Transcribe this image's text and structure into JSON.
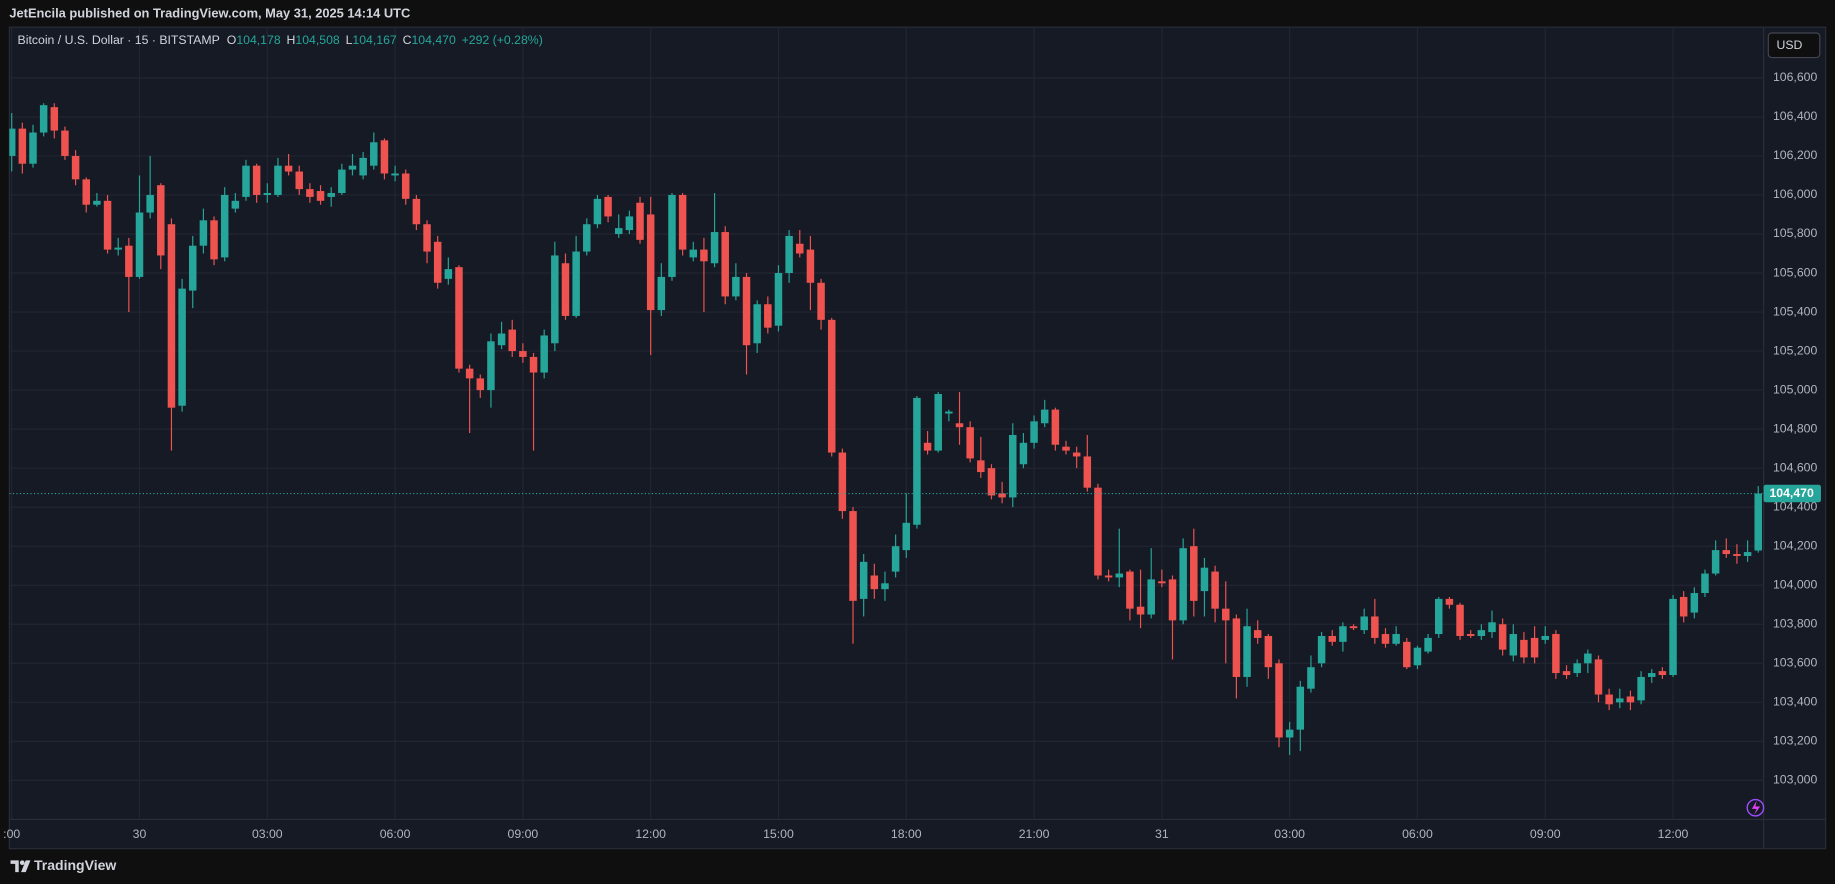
{
  "header": {
    "publisher": "JetEncila published on TradingView.com, May 31, 2025 14:14 UTC"
  },
  "footer": {
    "brand": "TradingView"
  },
  "chart_data": {
    "type": "candlestick",
    "symbol": "Bitcoin / U.S. Dollar · 15 · BITSTAMP",
    "ohlc_labels": [
      "O",
      "H",
      "L",
      "C"
    ],
    "ohlc_values": [
      {
        "value": 104178,
        "label": "104,178"
      },
      {
        "value": 104508,
        "label": "104,508"
      },
      {
        "value": 104167,
        "label": "104,167"
      },
      {
        "value": 104470,
        "label": "104,470"
      }
    ],
    "change": "+292 (+0.28%)",
    "currency": "USD",
    "up_color": "#26a69a",
    "down_color": "#ef5350",
    "last_price": {
      "value": 104470,
      "label": "104,470"
    },
    "grid": true,
    "ylim": [
      102800,
      106860
    ],
    "yticks": [
      {
        "value": 103000,
        "label": "103,000"
      },
      {
        "value": 103200,
        "label": "103,200"
      },
      {
        "value": 103400,
        "label": "103,400"
      },
      {
        "value": 103600,
        "label": "103,600"
      },
      {
        "value": 103800,
        "label": "103,800"
      },
      {
        "value": 104000,
        "label": "104,000"
      },
      {
        "value": 104200,
        "label": "104,200"
      },
      {
        "value": 104400,
        "label": "104,400"
      },
      {
        "value": 104600,
        "label": "104,600"
      },
      {
        "value": 104800,
        "label": "104,800"
      },
      {
        "value": 105000,
        "label": "105,000"
      },
      {
        "value": 105200,
        "label": "105,200"
      },
      {
        "value": 105400,
        "label": "105,400"
      },
      {
        "value": 105600,
        "label": "105,600"
      },
      {
        "value": 105800,
        "label": "105,800"
      },
      {
        "value": 106000,
        "label": "106,000"
      },
      {
        "value": 106200,
        "label": "106,200"
      },
      {
        "value": 106400,
        "label": "106,400"
      },
      {
        "value": 106600,
        "label": "106,600"
      }
    ],
    "categories": [
      ":00",
      null,
      null,
      null,
      null,
      null,
      null,
      null,
      null,
      null,
      null,
      null,
      "30",
      null,
      null,
      null,
      null,
      null,
      null,
      null,
      null,
      null,
      null,
      null,
      "03:00",
      null,
      null,
      null,
      null,
      null,
      null,
      null,
      null,
      null,
      null,
      null,
      "06:00",
      null,
      null,
      null,
      null,
      null,
      null,
      null,
      null,
      null,
      null,
      null,
      "09:00",
      null,
      null,
      null,
      null,
      null,
      null,
      null,
      null,
      null,
      null,
      null,
      "12:00",
      null,
      null,
      null,
      null,
      null,
      null,
      null,
      null,
      null,
      null,
      null,
      "15:00",
      null,
      null,
      null,
      null,
      null,
      null,
      null,
      null,
      null,
      null,
      null,
      "18:00",
      null,
      null,
      null,
      null,
      null,
      null,
      null,
      null,
      null,
      null,
      null,
      "21:00",
      null,
      null,
      null,
      null,
      null,
      null,
      null,
      null,
      null,
      null,
      null,
      "31",
      null,
      null,
      null,
      null,
      null,
      null,
      null,
      null,
      null,
      null,
      null,
      "03:00",
      null,
      null,
      null,
      null,
      null,
      null,
      null,
      null,
      null,
      null,
      null,
      "06:00",
      null,
      null,
      null,
      null,
      null,
      null,
      null,
      null,
      null,
      null,
      null,
      "09:00",
      null,
      null,
      null,
      null,
      null,
      null,
      null,
      null,
      null,
      null,
      null,
      "12:00",
      null,
      null,
      null,
      null,
      null,
      null,
      null,
      null
    ],
    "open": [
      106200,
      106340,
      106160,
      106320,
      106450,
      106330,
      106200,
      106080,
      105950,
      105970,
      105720,
      105740,
      105580,
      105910,
      106050,
      105850,
      104920,
      105510,
      105740,
      105870,
      105680,
      105930,
      105990,
      106150,
      106000,
      106000,
      106150,
      106120,
      106030,
      106020,
      105990,
      106010,
      106130,
      106100,
      106150,
      106280,
      106100,
      106110,
      105980,
      105850,
      105760,
      105570,
      105630,
      105110,
      105060,
      105000,
      105230,
      105310,
      105200,
      105170,
      105090,
      105240,
      105650,
      105380,
      105710,
      105850,
      105990,
      105800,
      105820,
      105960,
      105900,
      105410,
      105580,
      106000,
      105680,
      105720,
      105650,
      105810,
      105480,
      105580,
      105240,
      105440,
      105330,
      105600,
      105750,
      105720,
      105550,
      105360,
      104680,
      104380,
      103930,
      104050,
      103980,
      104070,
      104180,
      104310,
      104730,
      104690,
      104880,
      104830,
      104810,
      104640,
      104600,
      104470,
      104450,
      104620,
      104730,
      104830,
      104900,
      104710,
      104680,
      104660,
      104500,
      104050,
      104040,
      104070,
      103890,
      103850,
      104020,
      104030,
      103820,
      104200,
      103970,
      104070,
      103880,
      103830,
      103530,
      103770,
      103740,
      103600,
      103220,
      103260,
      103470,
      103600,
      103740,
      103710,
      103790,
      103770,
      103840,
      103750,
      103700,
      103710,
      103590,
      103660,
      103750,
      103930,
      103900,
      103750,
      103740,
      103760,
      103800,
      103640,
      103720,
      103730,
      103720,
      103750,
      103560,
      103550,
      103600,
      103620,
      103440,
      103400,
      103430,
      103410,
      103530,
      103560,
      103540,
      103940,
      103860,
      103960,
      104060,
      104180,
      104160,
      104150,
      104178
    ],
    "high": [
      106420,
      106370,
      106360,
      106470,
      106470,
      106350,
      106230,
      106090,
      106010,
      106000,
      105780,
      105780,
      106100,
      106200,
      106060,
      105880,
      105570,
      105790,
      105930,
      105890,
      106040,
      106010,
      106180,
      106160,
      106060,
      106190,
      106210,
      106150,
      106060,
      106050,
      106040,
      106160,
      106210,
      106220,
      106320,
      106290,
      106150,
      106130,
      106000,
      105870,
      105790,
      105680,
      105640,
      105130,
      105080,
      105290,
      105350,
      105360,
      105240,
      105190,
      105310,
      105760,
      105700,
      105790,
      105880,
      106000,
      106000,
      105900,
      105920,
      105990,
      105990,
      105650,
      106010,
      106010,
      105760,
      105780,
      106010,
      105840,
      105650,
      105600,
      105460,
      105480,
      105640,
      105820,
      105820,
      105790,
      105570,
      105370,
      104700,
      104400,
      104160,
      104110,
      104070,
      104260,
      104470,
      104970,
      104790,
      104990,
      104900,
      104990,
      104840,
      104760,
      104620,
      104530,
      104830,
      104780,
      104870,
      104950,
      104910,
      104740,
      104710,
      104770,
      104520,
      104080,
      104290,
      104080,
      104080,
      104190,
      104080,
      104050,
      104240,
      104290,
      104140,
      104100,
      104020,
      103850,
      103880,
      103820,
      103750,
      103620,
      103300,
      103510,
      103640,
      103760,
      103770,
      103810,
      103800,
      103880,
      103930,
      103780,
      103790,
      103730,
      103690,
      103750,
      103940,
      103940,
      103910,
      103770,
      103800,
      103870,
      103830,
      103800,
      103760,
      103790,
      103790,
      103770,
      103590,
      103620,
      103670,
      103640,
      103470,
      103470,
      103460,
      103560,
      103570,
      103580,
      103950,
      103970,
      103990,
      104080,
      104230,
      104240,
      104210,
      104230,
      104508
    ],
    "low": [
      106120,
      106110,
      106140,
      106300,
      106290,
      106180,
      106050,
      105910,
      105940,
      105700,
      105690,
      105400,
      105570,
      105880,
      105620,
      104690,
      104890,
      105420,
      105700,
      105640,
      105660,
      105910,
      105970,
      105960,
      105960,
      105990,
      106100,
      106000,
      105960,
      105950,
      105940,
      106000,
      106100,
      106080,
      106130,
      106080,
      106070,
      105950,
      105820,
      105650,
      105520,
      105540,
      105090,
      104780,
      104960,
      104910,
      105210,
      105170,
      105140,
      104690,
      105060,
      105200,
      105360,
      105370,
      105690,
      105830,
      105860,
      105780,
      105800,
      105750,
      105180,
      105380,
      105560,
      105690,
      105660,
      105400,
      105630,
      105440,
      105460,
      105080,
      105190,
      105290,
      105300,
      105550,
      105680,
      105410,
      105310,
      104660,
      104340,
      103700,
      103840,
      103930,
      103920,
      104040,
      104140,
      104290,
      104670,
      104680,
      104840,
      104720,
      104630,
      104550,
      104440,
      104420,
      104400,
      104600,
      104700,
      104810,
      104690,
      104670,
      104600,
      104480,
      104030,
      104020,
      103990,
      103820,
      103780,
      103830,
      103990,
      103620,
      103800,
      103840,
      103840,
      103810,
      103600,
      103420,
      103480,
      103700,
      103520,
      103170,
      103130,
      103150,
      103450,
      103580,
      103690,
      103660,
      103770,
      103750,
      103700,
      103680,
      103690,
      103570,
      103570,
      103650,
      103730,
      103880,
      103720,
      103730,
      103720,
      103730,
      103640,
      103610,
      103600,
      103600,
      103700,
      103520,
      103520,
      103530,
      103550,
      103400,
      103360,
      103370,
      103360,
      103390,
      103500,
      103520,
      103530,
      103810,
      103830,
      103940,
      104050,
      104140,
      104110,
      104120,
      104167
    ],
    "close": [
      106340,
      106160,
      106320,
      106460,
      106330,
      106200,
      106080,
      105950,
      105970,
      105720,
      105730,
      105580,
      105910,
      106000,
      105690,
      104910,
      105520,
      105740,
      105870,
      105670,
      106000,
      105970,
      106150,
      106000,
      106010,
      106150,
      106120,
      106030,
      105990,
      105970,
      106010,
      106130,
      106150,
      106190,
      106270,
      106110,
      106110,
      105980,
      105850,
      105710,
      105550,
      105620,
      105110,
      105060,
      105000,
      105250,
      105290,
      105200,
      105170,
      105090,
      105280,
      105690,
      105380,
      105710,
      105850,
      105980,
      105890,
      105830,
      105890,
      105770,
      105410,
      105580,
      106000,
      105720,
      105720,
      105660,
      105810,
      105480,
      105580,
      105230,
      105440,
      105320,
      105600,
      105790,
      105700,
      105550,
      105360,
      104680,
      104380,
      103920,
      104120,
      103980,
      104010,
      104200,
      104320,
      104960,
      104690,
      104980,
      104890,
      104810,
      104650,
      104580,
      104460,
      104450,
      104770,
      104730,
      104840,
      104900,
      104720,
      104690,
      104660,
      104500,
      104050,
      104040,
      104060,
      103880,
      103850,
      104030,
      104010,
      103820,
      104190,
      103920,
      104090,
      103880,
      103820,
      103530,
      103790,
      103730,
      103580,
      103220,
      103260,
      103480,
      103580,
      103740,
      103710,
      103790,
      103780,
      103840,
      103730,
      103700,
      103750,
      103580,
      103680,
      103730,
      103930,
      103900,
      103740,
      103740,
      103770,
      103810,
      103670,
      103750,
      103630,
      103630,
      103740,
      103550,
      103540,
      103600,
      103650,
      103440,
      103390,
      103420,
      103400,
      103530,
      103550,
      103540,
      103930,
      103840,
      103960,
      104060,
      104180,
      104160,
      104150,
      104170,
      104470
    ]
  }
}
